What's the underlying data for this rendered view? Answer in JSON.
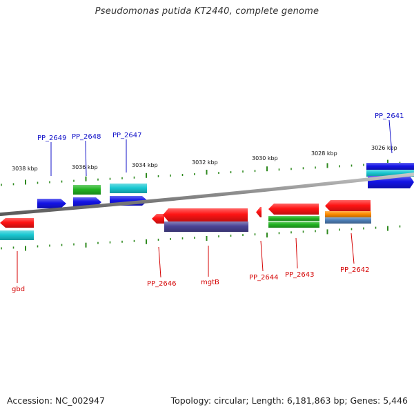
{
  "title": "Pseudomonas putida KT2440, complete genome",
  "footer": {
    "accession": "Accession: NC_002947",
    "summary": "Topology: circular; Length: 6,181,863 bp; Genes: 5,446"
  },
  "colors": {
    "backbone": "#8c8c8c",
    "tick": "#2f8a1f",
    "upper_label": "#1010c8",
    "lower_label": "#d40000",
    "red": "#ff1414",
    "blue": "#1414e6",
    "green": "#22b422",
    "cyan": "#19c8d2",
    "slate": "#4a4496",
    "orange": "#ff8c00",
    "steel": "#4e7fb8"
  },
  "scale_labels": [
    "3038 kbp",
    "3036 kbp",
    "3034 kbp",
    "3032 kbp",
    "3030 kbp",
    "3028 kbp",
    "3026 kbp"
  ],
  "upper_labels": [
    "PP_2649",
    "PP_2648",
    "PP_2647",
    "PP_2641"
  ],
  "lower_labels": [
    "gbd",
    "PP_2646",
    "mgtB",
    "PP_2644",
    "PP_2643",
    "PP_2642"
  ],
  "features": [
    {
      "gene": "gbd",
      "strand": "reverse",
      "color": "red"
    },
    {
      "gene": "gbd",
      "strand": "reverse",
      "color": "cyan"
    },
    {
      "gene": "PP_2649",
      "strand": "forward",
      "color": "blue"
    },
    {
      "gene": "PP_2648",
      "strand": "forward",
      "color": "blue"
    },
    {
      "gene": "PP_2648",
      "strand": "forward",
      "color": "green"
    },
    {
      "gene": "PP_2647",
      "strand": "forward",
      "color": "blue"
    },
    {
      "gene": "PP_2647",
      "strand": "forward",
      "color": "cyan"
    },
    {
      "gene": "PP_2646",
      "strand": "reverse",
      "color": "red"
    },
    {
      "gene": "mgtB",
      "strand": "reverse",
      "color": "red"
    },
    {
      "gene": "mgtB",
      "strand": "reverse",
      "color": "slate"
    },
    {
      "gene": "PP_2644",
      "strand": "reverse",
      "color": "red"
    },
    {
      "gene": "PP_2643",
      "strand": "reverse",
      "color": "red"
    },
    {
      "gene": "PP_2643",
      "strand": "reverse",
      "color": "green"
    },
    {
      "gene": "PP_2642",
      "strand": "reverse",
      "color": "red"
    },
    {
      "gene": "PP_2642",
      "strand": "reverse",
      "color": "orange"
    },
    {
      "gene": "PP_2642",
      "strand": "reverse",
      "color": "steel"
    },
    {
      "gene": "PP_2641",
      "strand": "forward",
      "color": "blue"
    },
    {
      "gene": "PP_2641",
      "strand": "forward",
      "color": "cyan"
    }
  ]
}
